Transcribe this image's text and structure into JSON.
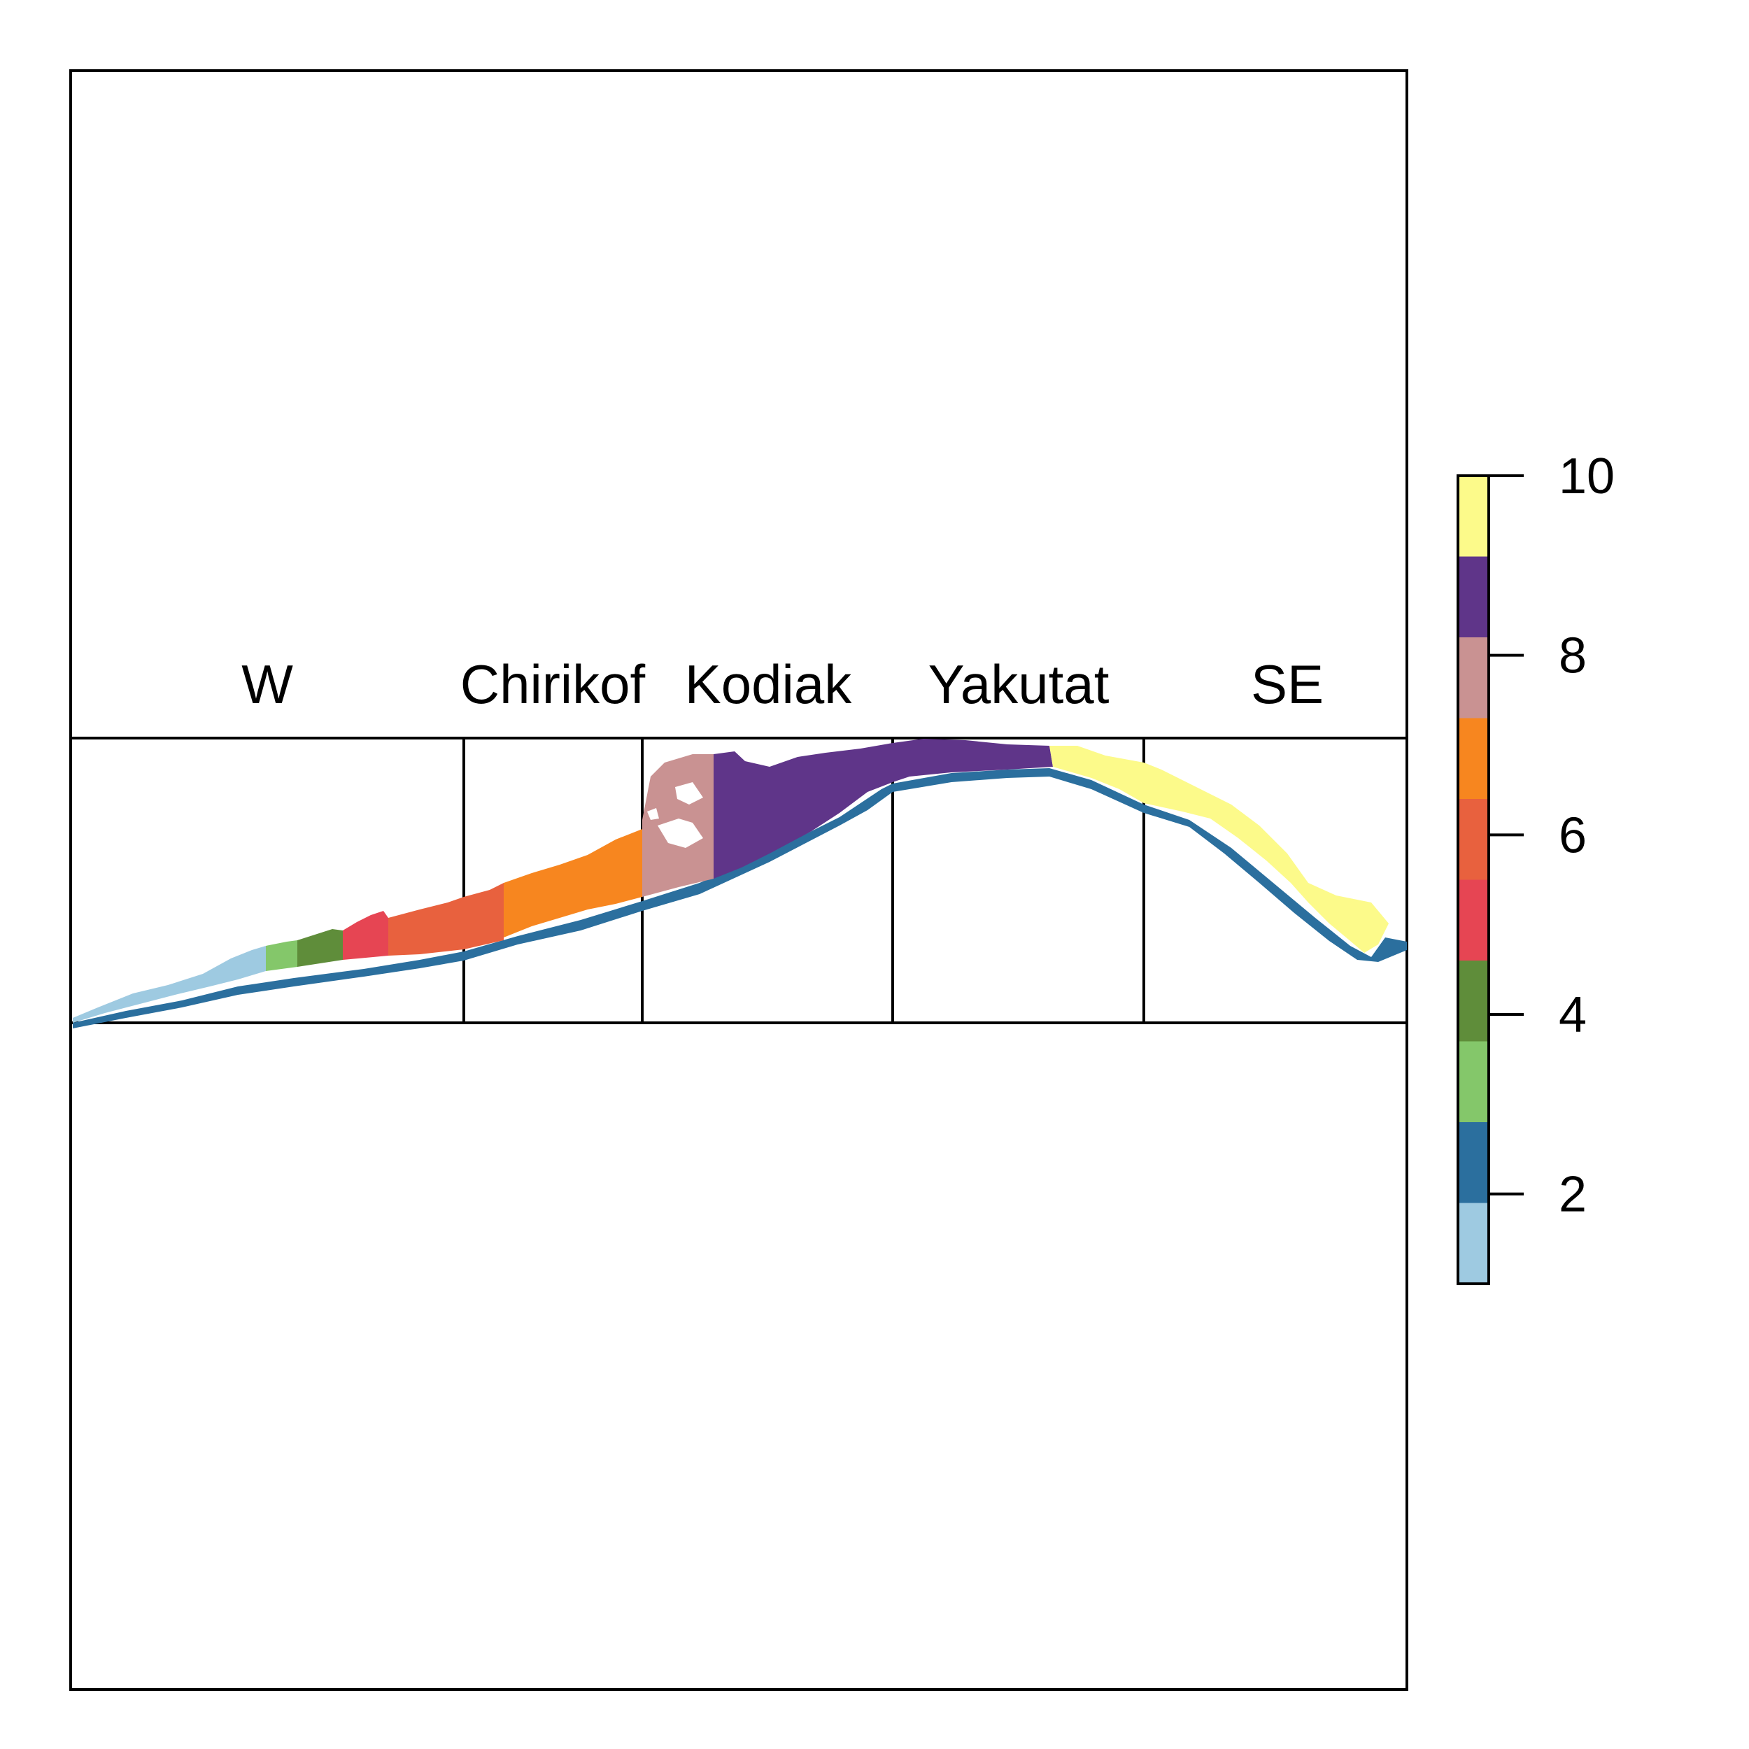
{
  "map": {
    "regions": [
      {
        "label": "W"
      },
      {
        "label": "Chirikof"
      },
      {
        "label": "Kodiak"
      },
      {
        "label": "Yakutat"
      },
      {
        "label": "SE"
      }
    ]
  },
  "legend": {
    "type": "color-scale",
    "min": 1,
    "max": 10,
    "ticks": [
      "2",
      "4",
      "6",
      "8",
      "10"
    ],
    "classes": [
      {
        "value": 1,
        "color": "#9ecae1"
      },
      {
        "value": 2,
        "color": "#2b6f9e"
      },
      {
        "value": 3,
        "color": "#84c76a"
      },
      {
        "value": 4,
        "color": "#5f8d3a"
      },
      {
        "value": 5,
        "color": "#e64553"
      },
      {
        "value": 6,
        "color": "#e8613e"
      },
      {
        "value": 7,
        "color": "#f7861f"
      },
      {
        "value": 8,
        "color": "#c99292"
      },
      {
        "value": 9,
        "color": "#5f3589"
      },
      {
        "value": 10,
        "color": "#fcfa8a"
      }
    ]
  }
}
